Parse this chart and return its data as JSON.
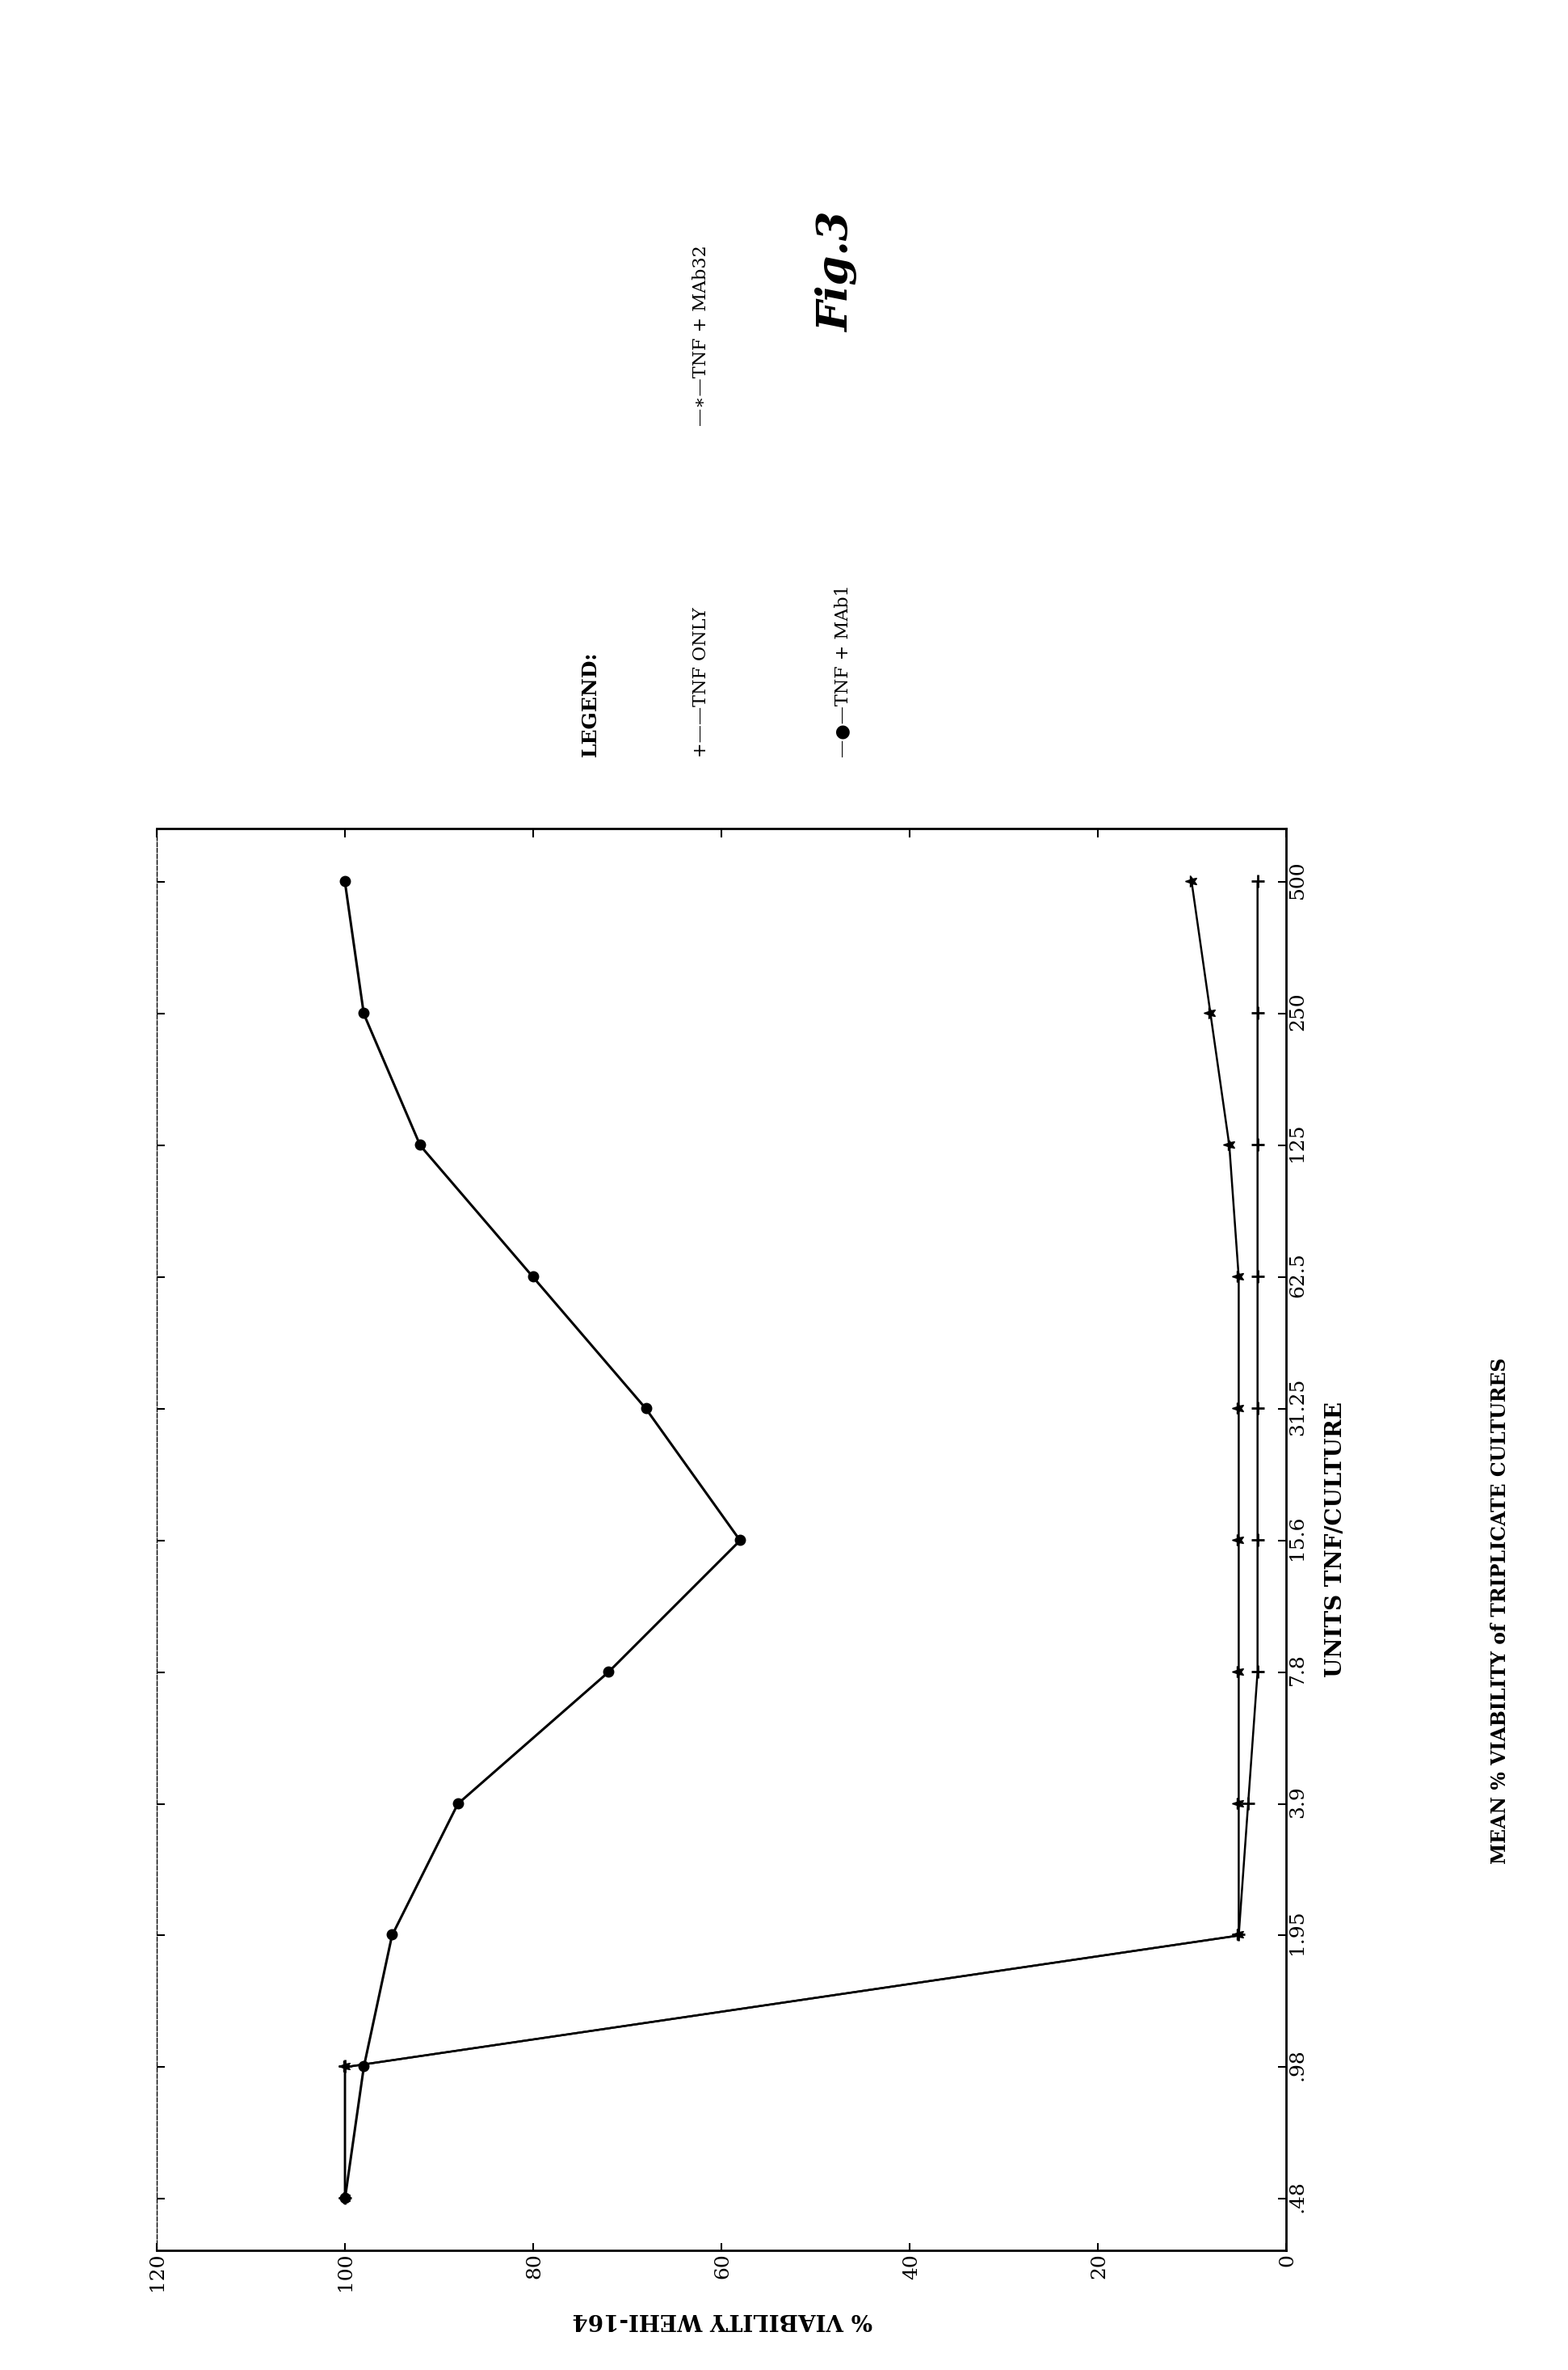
{
  "x_tick_labels": [
    ".48",
    ".98",
    "1.95",
    "3.9",
    "7.8",
    "15.6",
    "31.25",
    "62.5",
    "125",
    "250",
    "500"
  ],
  "tnf_only_y": [
    100,
    100,
    5,
    4,
    3,
    3,
    3,
    3,
    3,
    3,
    3
  ],
  "tnf_mab1_y": [
    100,
    98,
    95,
    88,
    72,
    58,
    68,
    80,
    92,
    98,
    100
  ],
  "tnf_mab32_y": [
    100,
    100,
    5,
    5,
    5,
    5,
    5,
    5,
    6,
    8,
    10
  ],
  "yticks": [
    0,
    20,
    40,
    60,
    80,
    100,
    120
  ],
  "ytick_labels": [
    "0",
    "20",
    "40",
    "60",
    "80",
    "100",
    "120"
  ],
  "ylabel": "% VIABILITY WEHI-164",
  "xlabel": "UNITS TNF/CULTURE",
  "legend_title": "LEGEND:",
  "fig_label": "Fig.3",
  "bottom_note": "MEAN % VIABILITY of TRIPLICATE CULTURES",
  "fig_width": 19.41,
  "fig_height": 29.32
}
